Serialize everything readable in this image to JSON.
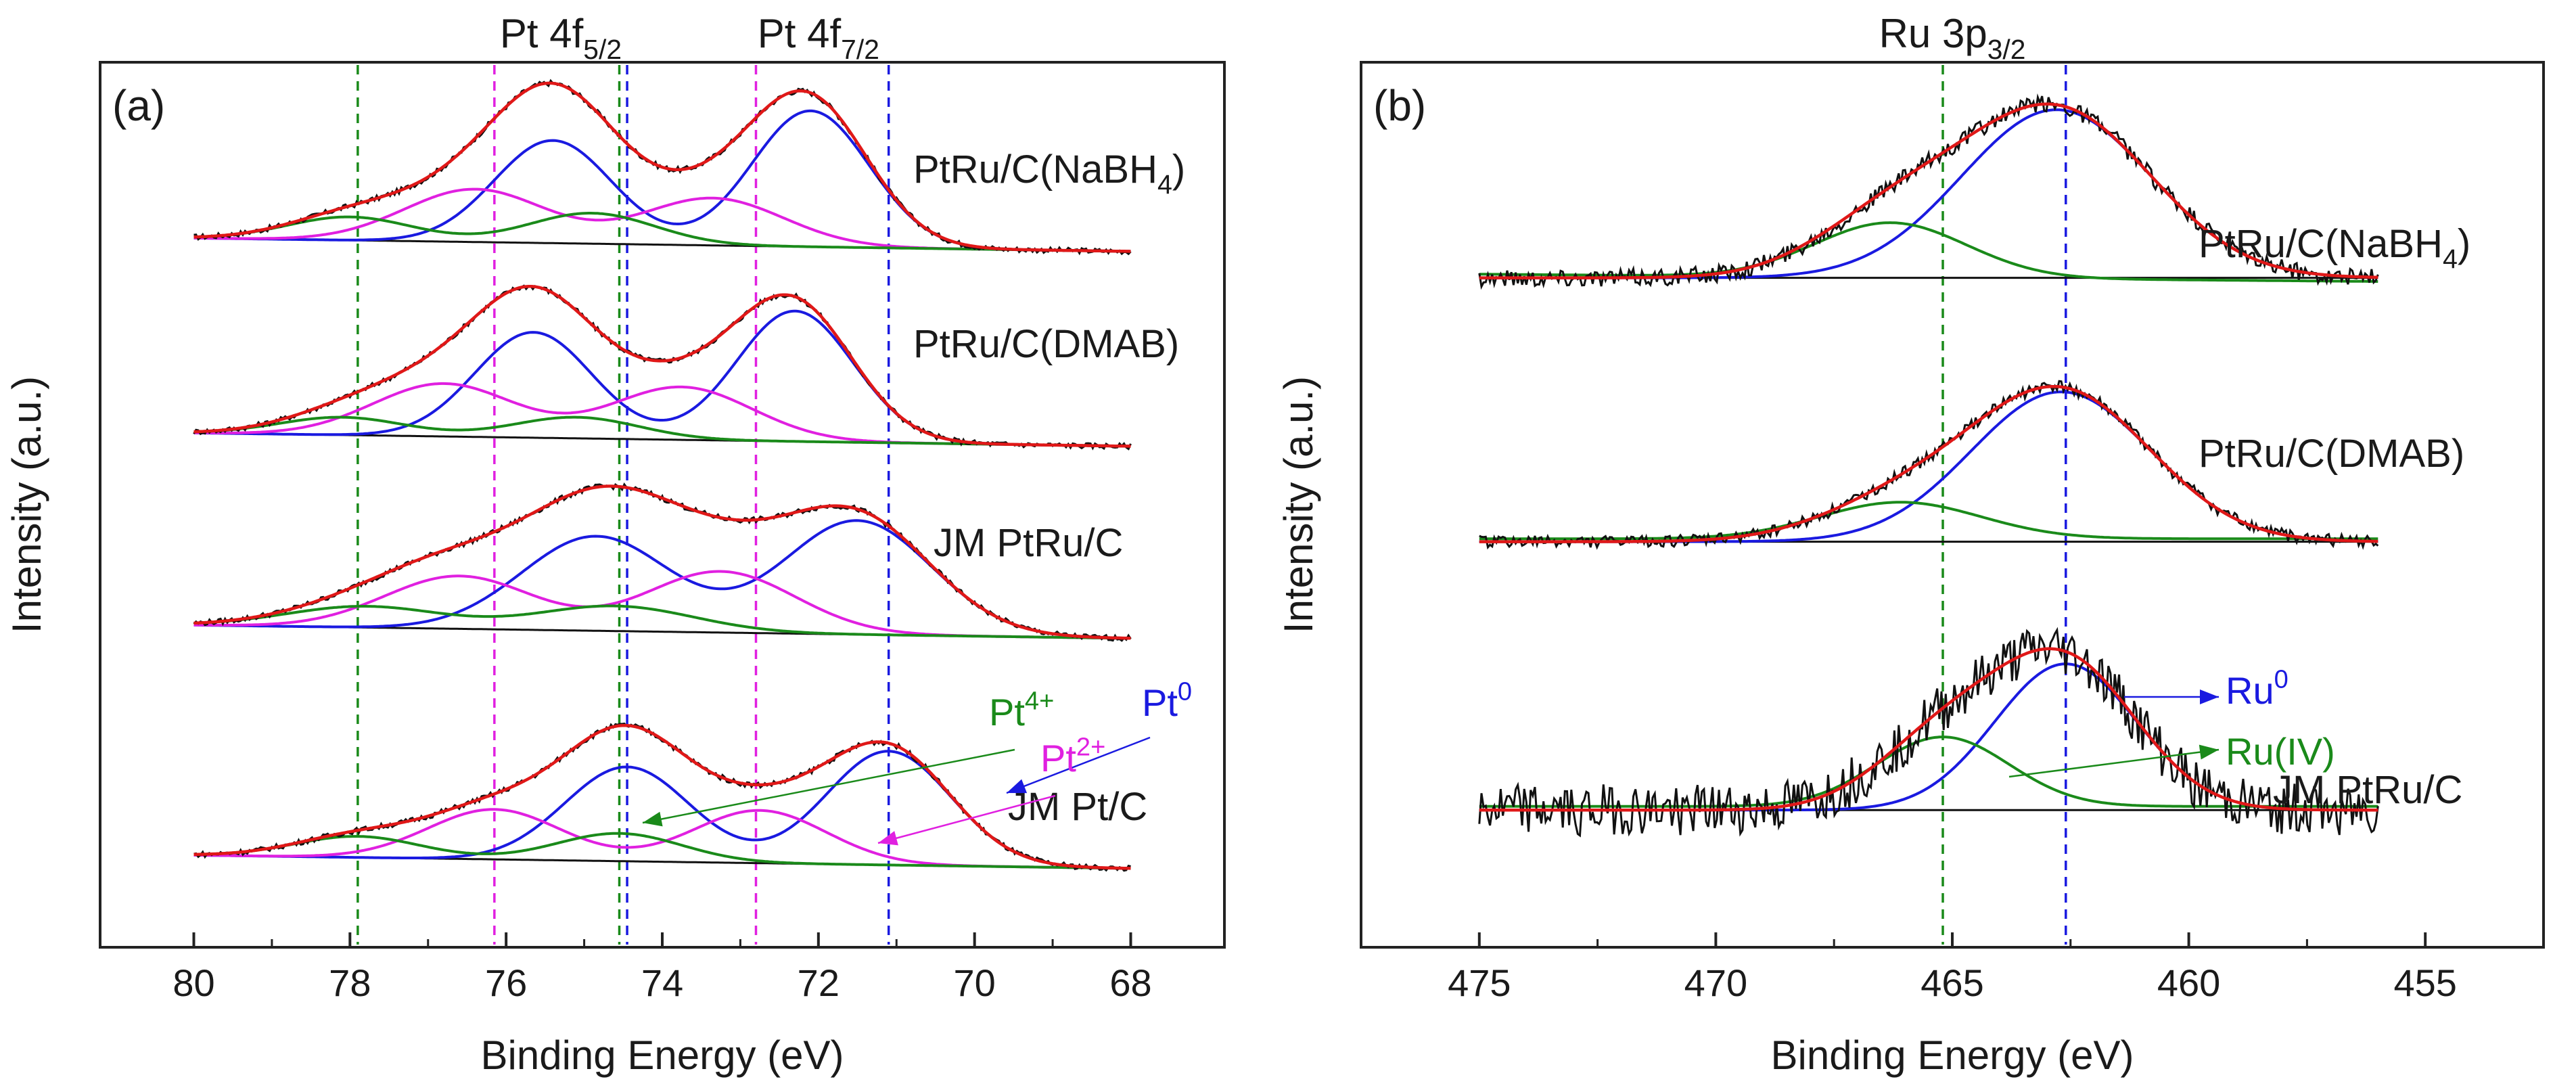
{
  "chart_data": [
    {
      "panel_label": "(a)",
      "type": "line",
      "xlabel": "Binding Energy (eV)",
      "ylabel": "Intensity (a.u.)",
      "xlim": [
        81.2,
        66.8
      ],
      "x_ticks": [
        80,
        78,
        76,
        74,
        72,
        70,
        68
      ],
      "x_tick_labels": [
        "80",
        "78",
        "76",
        "74",
        "72",
        "70",
        "68"
      ],
      "top_labels": [
        {
          "base": "Pt 4f",
          "sub": "5/2",
          "x": 75.3
        },
        {
          "base": "Pt 4f",
          "sub": "7/2",
          "x": 72.0
        }
      ],
      "x_range": [
        80,
        68
      ],
      "vlines": [
        {
          "x": 77.9,
          "color": "#1a8a1a"
        },
        {
          "x": 76.15,
          "color": "#e020e0"
        },
        {
          "x": 74.55,
          "color": "#1a8a1a"
        },
        {
          "x": 74.45,
          "color": "#1a1ae0"
        },
        {
          "x": 72.8,
          "color": "#e020e0"
        },
        {
          "x": 71.1,
          "color": "#1a1ae0"
        }
      ],
      "samples": [
        {
          "name": "PtRu/C(NaBH",
          "sub": "4",
          "suffix": ")",
          "baseline": [
            0.1,
            -0.12
          ],
          "components": [
            {
              "species": "Pt0",
              "color": "#1a1ae0",
              "peaks": [
                [
                  72.1,
                  2.45,
                  0.75
                ],
                [
                  75.4,
                  1.85,
                  0.75
                ]
              ]
            },
            {
              "species": "Pt2+",
              "color": "#e020e0",
              "peaks": [
                [
                  73.35,
                  0.85,
                  0.9
                ],
                [
                  76.4,
                  0.95,
                  0.9
                ]
              ]
            },
            {
              "species": "Pt4+",
              "color": "#1a8a1a",
              "peaks": [
                [
                  74.9,
                  0.55,
                  0.8
                ],
                [
                  78.0,
                  0.42,
                  0.8
                ]
              ]
            }
          ]
        },
        {
          "name": "PtRu/C(DMAB)",
          "baseline": [
            0.1,
            -0.12
          ],
          "components": [
            {
              "species": "Pt0",
              "color": "#1a1ae0",
              "peaks": [
                [
                  72.3,
                  2.35,
                  0.75
                ],
                [
                  75.65,
                  1.9,
                  0.75
                ]
              ]
            },
            {
              "species": "Pt2+",
              "color": "#e020e0",
              "peaks": [
                [
                  73.75,
                  0.95,
                  0.9
                ],
                [
                  76.8,
                  0.95,
                  0.9
                ]
              ]
            },
            {
              "species": "Pt4+",
              "color": "#1a8a1a",
              "peaks": [
                [
                  75.1,
                  0.38,
                  0.8
                ],
                [
                  78.1,
                  0.32,
                  0.8
                ]
              ]
            }
          ]
        },
        {
          "name": "JM PtRu/C",
          "baseline": [
            0.1,
            -0.12
          ],
          "components": [
            {
              "species": "Pt0",
              "color": "#1a1ae0",
              "peaks": [
                [
                  71.5,
                  2.05,
                  0.95
                ],
                [
                  74.85,
                  1.7,
                  0.95
                ]
              ]
            },
            {
              "species": "Pt2+",
              "color": "#e020e0",
              "peaks": [
                [
                  73.25,
                  1.1,
                  0.95
                ],
                [
                  76.6,
                  0.95,
                  0.95
                ]
              ]
            },
            {
              "species": "Pt4+",
              "color": "#1a8a1a",
              "peaks": [
                [
                  74.6,
                  0.45,
                  1.0
                ],
                [
                  77.8,
                  0.38,
                  1.0
                ]
              ]
            }
          ]
        },
        {
          "name": "JM Pt/C",
          "baseline": [
            0.1,
            -0.12
          ],
          "components": [
            {
              "species": "Pt0",
              "color": "#1a1ae0",
              "peaks": [
                [
                  71.1,
                  2.05,
                  0.8
                ],
                [
                  74.45,
                  1.7,
                  0.8
                ]
              ]
            },
            {
              "species": "Pt2+",
              "color": "#e020e0",
              "peaks": [
                [
                  72.75,
                  0.95,
                  0.85
                ],
                [
                  76.15,
                  0.9,
                  0.85
                ]
              ]
            },
            {
              "species": "Pt4+",
              "color": "#1a8a1a",
              "peaks": [
                [
                  74.55,
                  0.5,
                  0.8
                ],
                [
                  77.9,
                  0.38,
                  0.8
                ]
              ]
            }
          ]
        }
      ],
      "legend": [
        {
          "text": "Pt",
          "sup": "4+",
          "color": "#1a8a1a"
        },
        {
          "text": "Pt",
          "sup": "0",
          "color": "#1a1ae0"
        },
        {
          "text": "Pt",
          "sup": "2+",
          "color": "#e020e0"
        }
      ]
    },
    {
      "panel_label": "(b)",
      "type": "line",
      "xlabel": "Binding Energy (eV)",
      "ylabel": "Intensity (a.u.)",
      "xlim": [
        477.5,
        452.5
      ],
      "x_ticks": [
        475,
        470,
        465,
        460,
        455
      ],
      "x_tick_labels": [
        "475",
        "470",
        "465",
        "460",
        "455"
      ],
      "top_labels": [
        {
          "base": "Ru 3p",
          "sub": "3/2",
          "x": 465.0
        }
      ],
      "x_range": [
        475,
        456
      ],
      "vlines": [
        {
          "x": 465.2,
          "color": "#1a8a1a"
        },
        {
          "x": 462.6,
          "color": "#1a1ae0"
        }
      ],
      "samples": [
        {
          "name": "PtRu/C(NaBH",
          "sub": "4",
          "suffix": ")",
          "baseline": [
            0.55,
            0.0
          ],
          "green_baseline": [
            0.6,
            -0.05
          ],
          "noise": 0.12,
          "components": [
            {
              "species": "Ru0",
              "color": "#1a1ae0",
              "peaks": [
                [
                  462.8,
                  2.3,
                  2.0
                ]
              ]
            },
            {
              "species": "Ru(IV)",
              "color": "#1a8a1a",
              "peaks": [
                [
                  466.3,
                  0.75,
                  1.6
                ]
              ]
            }
          ]
        },
        {
          "name": "PtRu/C(DMAB)",
          "baseline": [
            0.18,
            0.0
          ],
          "green_baseline": [
            0.22,
            0.0
          ],
          "noise": 0.08,
          "components": [
            {
              "species": "Ru0",
              "color": "#1a1ae0",
              "peaks": [
                [
                  462.7,
                  2.05,
                  1.9
                ]
              ]
            },
            {
              "species": "Ru(IV)",
              "color": "#1a8a1a",
              "peaks": [
                [
                  466.1,
                  0.5,
                  1.7
                ]
              ]
            }
          ]
        },
        {
          "name": "JM PtRu/C",
          "baseline": [
            0.6,
            0.0
          ],
          "green_baseline": [
            0.65,
            0.0
          ],
          "noise": 0.35,
          "components": [
            {
              "species": "Ru0",
              "color": "#1a1ae0",
              "peaks": [
                [
                  462.6,
                  2.0,
                  1.5
                ]
              ]
            },
            {
              "species": "Ru(IV)",
              "color": "#1a8a1a",
              "peaks": [
                [
                  465.2,
                  0.95,
                  1.4
                ]
              ]
            }
          ]
        }
      ],
      "legend": [
        {
          "text": "Ru",
          "sup": "0",
          "color": "#1a1ae0"
        },
        {
          "text": "Ru(IV)",
          "sup": "",
          "color": "#1a8a1a"
        }
      ]
    }
  ]
}
